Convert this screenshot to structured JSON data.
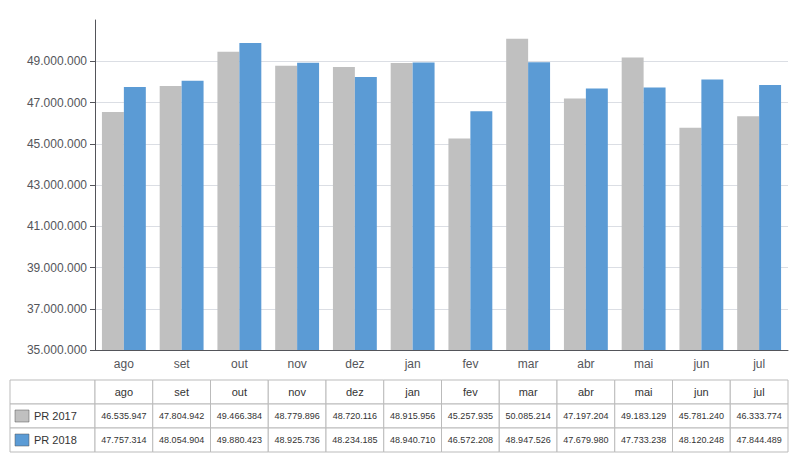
{
  "chart_data": {
    "type": "bar",
    "categories": [
      "ago",
      "set",
      "out",
      "nov",
      "dez",
      "jan",
      "fev",
      "mar",
      "abr",
      "mai",
      "jun",
      "jul"
    ],
    "series": [
      {
        "name": "PR 2017",
        "color": "#c0c0c0",
        "values": [
          46535947,
          47804942,
          49466384,
          48779896,
          48720116,
          48915956,
          45257935,
          50085214,
          47197204,
          49183129,
          45781240,
          46333774
        ],
        "value_labels": [
          "46.535.947",
          "47.804.942",
          "49.466.384",
          "48.779.896",
          "48.720.116",
          "48.915.956",
          "45.257.935",
          "50.085.214",
          "47.197.204",
          "49.183.129",
          "45.781.240",
          "46.333.774"
        ]
      },
      {
        "name": "PR 2018",
        "color": "#5b9bd5",
        "values": [
          47757314,
          48054904,
          49880423,
          48925736,
          48234185,
          48940710,
          46572208,
          48947526,
          47679980,
          47733238,
          48120248,
          47844489
        ],
        "value_labels": [
          "47.757.314",
          "48.054.904",
          "49.880.423",
          "48.925.736",
          "48.234.185",
          "48.940.710",
          "46.572.208",
          "48.947.526",
          "47.679.980",
          "47.733.238",
          "48.120.248",
          "47.844.489"
        ]
      }
    ],
    "ylim": [
      35000000,
      51000000
    ],
    "yticks": [
      {
        "value": 35000000,
        "label": "35.000.000"
      },
      {
        "value": 37000000,
        "label": "37.000.000"
      },
      {
        "value": 39000000,
        "label": "39.000.000"
      },
      {
        "value": 41000000,
        "label": "41.000.000"
      },
      {
        "value": 43000000,
        "label": "43.000.000"
      },
      {
        "value": 45000000,
        "label": "45.000.000"
      },
      {
        "value": 47000000,
        "label": "47.000.000"
      },
      {
        "value": 49000000,
        "label": "49.000.000"
      }
    ],
    "grid": true
  }
}
